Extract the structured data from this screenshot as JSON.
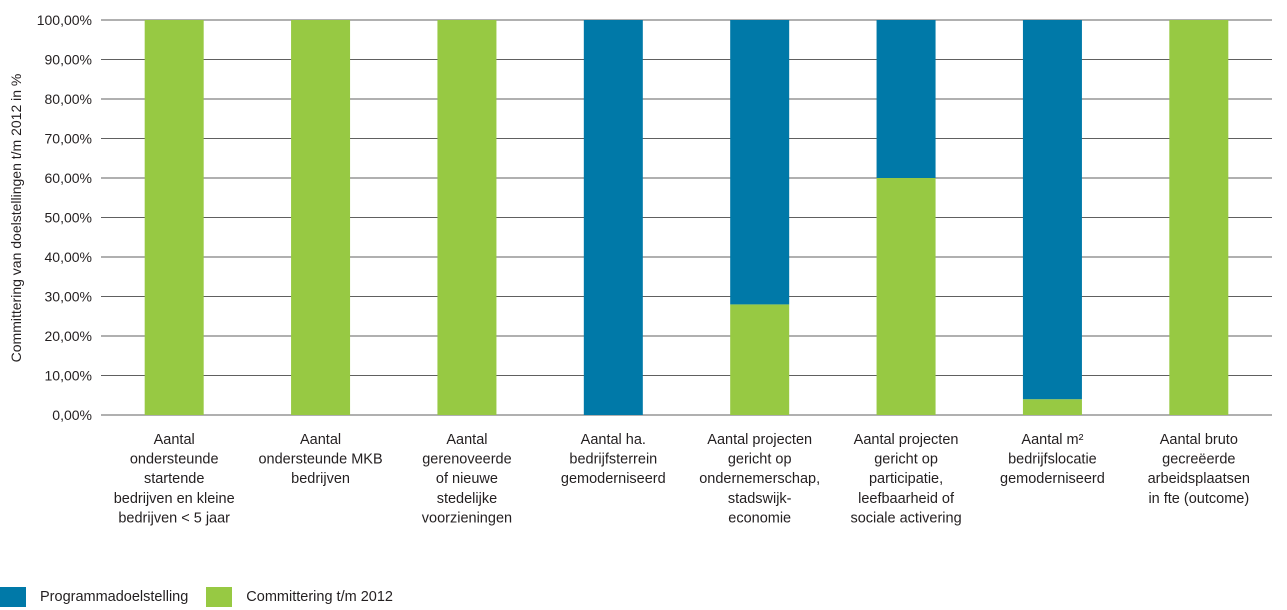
{
  "chart_data": {
    "type": "bar",
    "stacked": true,
    "ylabel": "Committering van doelstellingen t/m 2012 in %",
    "xlabel": "",
    "ylim": [
      0,
      100
    ],
    "yticks": [
      "0,00%",
      "10,00%",
      "20,00%",
      "30,00%",
      "40,00%",
      "50,00%",
      "60,00%",
      "70,00%",
      "80,00%",
      "90,00%",
      "100,00%"
    ],
    "grid": true,
    "legend_position": "bottom-left",
    "categories": [
      [
        "Aantal",
        "ondersteunde",
        "startende",
        "bedrijven en kleine",
        "bedrijven < 5 jaar"
      ],
      [
        "Aantal",
        "ondersteunde MKB",
        "bedrijven"
      ],
      [
        "Aantal",
        "gerenoveerde",
        "of nieuwe",
        "stedelijke",
        "voorzieningen"
      ],
      [
        "Aantal ha.",
        "bedrijfsterrein",
        "gemoderniseerd"
      ],
      [
        "Aantal projecten",
        "gericht op",
        "ondernemerschap,",
        "stadswijk-",
        "economie"
      ],
      [
        "Aantal projecten",
        "gericht op",
        "participatie,",
        "leefbaarheid of",
        "sociale activering"
      ],
      [
        "Aantal m²",
        "bedrijfslocatie",
        "gemoderniseerd"
      ],
      [
        "Aantal bruto",
        "gecreëerde",
        "arbeidsplaatsen",
        "in fte (outcome)"
      ]
    ],
    "series": [
      {
        "name": "Programmadoelstelling",
        "color": "#0079a8",
        "values": [
          0,
          0,
          0,
          100,
          72,
          40,
          96,
          0
        ]
      },
      {
        "name": "Committering t/m 2012",
        "color": "#97c943",
        "values": [
          100,
          100,
          100,
          0,
          28,
          60,
          4,
          100
        ]
      }
    ],
    "stack_order": [
      "Committering t/m 2012",
      "Programmadoelstelling"
    ]
  }
}
